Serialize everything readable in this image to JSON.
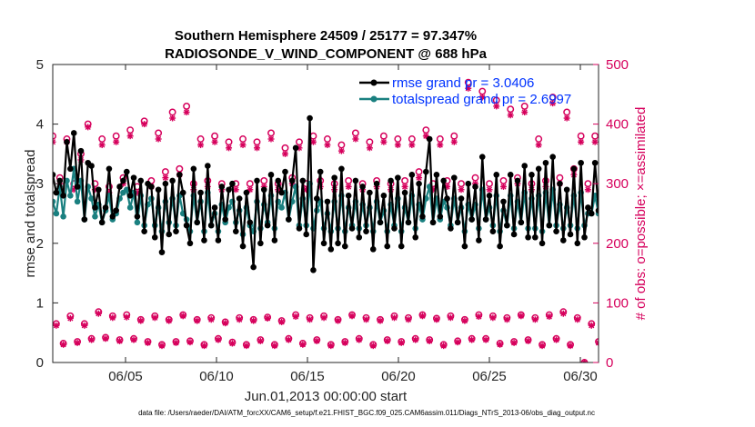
{
  "chart_data": {
    "type": "line",
    "title": "Southern Hemisphere 24509 / 25177 = 97.347%",
    "subtitle": "RADIOSONDE_V_WIND_COMPONENT @ 688 hPa",
    "xlabel": "Jun.01,2013 00:00:00 start",
    "ylabel": "rmse and totalspread",
    "ylabel_right": "# of obs: o=possible; ×=assimilated",
    "footnote": "data file: /Users/raeder/DAI/ATM_forcXX/CAM6_setup/f.e21.FHIST_BGC.f09_025.CAM6assim.011/Diags_NTrS_2013-06/obs_diag_output.nc",
    "xlim": [
      1.0,
      31.0
    ],
    "ylim": [
      0,
      5
    ],
    "ylim_right": [
      0,
      500
    ],
    "x_ticks": [
      5,
      10,
      15,
      20,
      25,
      30
    ],
    "x_tick_labels": [
      "06/05",
      "06/10",
      "06/15",
      "06/20",
      "06/25",
      "06/30"
    ],
    "y_ticks": [
      0,
      1,
      2,
      3,
      4,
      5
    ],
    "y_tick_labels": [
      "0",
      "1",
      "2",
      "3",
      "4",
      "5"
    ],
    "y_ticks_right": [
      0,
      100,
      200,
      300,
      400,
      500
    ],
    "y_tick_labels_right": [
      "0",
      "100",
      "200",
      "300",
      "400",
      "500"
    ],
    "legend_position": "top-right",
    "grid": false,
    "series": [
      {
        "name": "rmse grand pr = 3.0406",
        "axis": "left",
        "color": "#000000",
        "marker": "filled-circle",
        "values": [
          3.15,
          2.85,
          3.05,
          2.8,
          3.7,
          3.25,
          3.85,
          2.95,
          3.55,
          2.4,
          3.35,
          3.3,
          2.6,
          2.9,
          2.35,
          2.6,
          3.25,
          2.45,
          2.55,
          2.95,
          3.05,
          3.2,
          2.8,
          3.1,
          2.45,
          3.05,
          2.2,
          3.0,
          2.95,
          2.1,
          2.9,
          1.85,
          3.0,
          2.15,
          3.05,
          2.2,
          3.15,
          2.85,
          2.3,
          2.0,
          3.25,
          2.35,
          2.85,
          2.05,
          3.3,
          2.3,
          2.6,
          2.05,
          2.95,
          2.4,
          2.9,
          3.0,
          2.2,
          2.75,
          1.95,
          2.85,
          2.35,
          1.6,
          3.05,
          2.0,
          2.9,
          2.3,
          3.15,
          2.05,
          3.05,
          2.85,
          3.2,
          2.4,
          3.05,
          3.6,
          2.25,
          3.05,
          2.15,
          4.1,
          1.55,
          2.75,
          3.2,
          2.0,
          2.7,
          1.9,
          3.1,
          2.0,
          3.25,
          1.95,
          2.8,
          2.25,
          3.05,
          2.1,
          2.95,
          2.2,
          2.85,
          1.9,
          3.0,
          2.35,
          2.8,
          1.95,
          3.05,
          2.25,
          3.1,
          1.95,
          2.85,
          2.35,
          3.15,
          2.1,
          3.0,
          2.45,
          3.2,
          3.75,
          2.35,
          3.15,
          2.45,
          3.05,
          2.75,
          2.25,
          3.1,
          2.35,
          2.75,
          1.95,
          3.0,
          2.4,
          2.95,
          2.05,
          3.45,
          2.4,
          2.8,
          2.2,
          3.15,
          1.95,
          2.7,
          2.3,
          3.15,
          2.15,
          3.05,
          2.35,
          3.3,
          2.1,
          3.15,
          2.1,
          3.25,
          2.0,
          3.35,
          2.3,
          3.45,
          2.2,
          3.0,
          2.05,
          2.9,
          2.15,
          3.25,
          2.0,
          3.35,
          2.1,
          2.6,
          2.5,
          3.35,
          2.55
        ],
        "y_estimate_note": ""
      },
      {
        "name": "totalspread grand pr = 2.6997",
        "axis": "left",
        "color": "#1a8080",
        "marker": "filled-circle",
        "values": [
          2.7,
          2.5,
          2.95,
          2.45,
          3.05,
          2.8,
          3.25,
          2.7,
          3.05,
          2.4,
          2.95,
          2.75,
          2.45,
          2.65,
          2.35,
          2.55,
          2.8,
          2.4,
          2.5,
          2.75,
          2.85,
          2.9,
          2.6,
          2.85,
          2.35,
          2.8,
          2.3,
          2.65,
          2.75,
          2.3,
          2.6,
          2.2,
          2.7,
          2.35,
          2.75,
          2.3,
          2.8,
          2.5,
          2.4,
          2.2,
          2.8,
          2.35,
          2.7,
          2.2,
          2.85,
          2.3,
          2.5,
          2.2,
          2.65,
          2.35,
          2.6,
          2.7,
          2.35,
          2.55,
          2.15,
          2.6,
          2.3,
          2.2,
          2.7,
          2.25,
          2.65,
          2.35,
          2.8,
          2.25,
          2.7,
          2.6,
          2.85,
          2.4,
          2.7,
          2.95,
          2.3,
          2.75,
          2.3,
          3.0,
          2.25,
          2.55,
          2.7,
          2.25,
          2.5,
          2.2,
          2.7,
          2.25,
          2.8,
          2.2,
          2.6,
          2.3,
          2.7,
          2.25,
          2.65,
          2.3,
          2.6,
          2.2,
          2.7,
          2.35,
          2.55,
          2.2,
          2.65,
          2.3,
          2.75,
          2.2,
          2.6,
          2.35,
          2.8,
          2.25,
          2.65,
          2.4,
          2.75,
          2.95,
          2.35,
          2.75,
          2.4,
          2.7,
          2.6,
          2.3,
          2.75,
          2.35,
          2.6,
          2.2,
          2.65,
          2.4,
          2.65,
          2.25,
          2.9,
          2.4,
          2.6,
          2.3,
          2.8,
          2.2,
          2.55,
          2.3,
          2.8,
          2.25,
          2.7,
          2.35,
          2.85,
          2.25,
          2.75,
          2.25,
          2.8,
          2.2,
          2.85,
          2.3,
          2.9,
          2.3,
          2.65,
          2.25,
          2.6,
          2.3,
          2.8,
          2.25,
          2.85,
          2.3,
          2.5,
          2.5,
          2.8,
          2.5
        ]
      },
      {
        "name": "possible",
        "axis": "right",
        "color": "#d6005c",
        "marker": "open-circle",
        "values": [
          380,
          65,
          310,
          32,
          375,
          78,
          300,
          35,
          350,
          65,
          400,
          40,
          300,
          85,
          375,
          42,
          295,
          78,
          380,
          38,
          310,
          80,
          390,
          40,
          295,
          72,
          405,
          35,
          305,
          78,
          385,
          30,
          320,
          72,
          420,
          35,
          325,
          80,
          430,
          36,
          300,
          72,
          375,
          30,
          305,
          75,
          380,
          40,
          300,
          68,
          370,
          34,
          300,
          75,
          375,
          30,
          300,
          72,
          370,
          38,
          305,
          76,
          385,
          30,
          300,
          70,
          360,
          40,
          310,
          80,
          370,
          32,
          300,
          75,
          380,
          38,
          305,
          78,
          375,
          30,
          300,
          72,
          365,
          35,
          305,
          80,
          385,
          40,
          300,
          75,
          370,
          30,
          305,
          72,
          380,
          38,
          300,
          78,
          375,
          35,
          305,
          75,
          375,
          40,
          320,
          80,
          390,
          38,
          300,
          74,
          375,
          30,
          305,
          78,
          380,
          36,
          300,
          72,
          470,
          40,
          310,
          80,
          455,
          40,
          300,
          78,
          440,
          32,
          305,
          75,
          425,
          35,
          310,
          80,
          430,
          38,
          300,
          75,
          375,
          30,
          305,
          80,
          445,
          40,
          310,
          85,
          420,
          30,
          325,
          75,
          380,
          0,
          300,
          65,
          380,
          35
        ]
      },
      {
        "name": "assimilated",
        "axis": "right",
        "color": "#d6005c",
        "marker": "asterisk",
        "values": [
          370,
          62,
          300,
          30,
          370,
          74,
          290,
          33,
          340,
          62,
          395,
          38,
          290,
          82,
          365,
          40,
          285,
          75,
          370,
          36,
          300,
          76,
          380,
          38,
          285,
          70,
          400,
          33,
          295,
          75,
          375,
          28,
          310,
          70,
          410,
          33,
          315,
          78,
          420,
          34,
          290,
          70,
          365,
          28,
          295,
          72,
          370,
          38,
          290,
          66,
          360,
          32,
          290,
          72,
          365,
          28,
          290,
          70,
          360,
          36,
          295,
          74,
          375,
          28,
          290,
          68,
          350,
          38,
          300,
          77,
          360,
          30,
          290,
          72,
          370,
          36,
          295,
          75,
          365,
          28,
          290,
          70,
          355,
          33,
          295,
          78,
          375,
          38,
          290,
          72,
          360,
          28,
          295,
          70,
          370,
          36,
          290,
          75,
          365,
          33,
          295,
          72,
          365,
          38,
          310,
          78,
          380,
          36,
          290,
          72,
          365,
          28,
          295,
          75,
          370,
          34,
          290,
          70,
          460,
          38,
          300,
          77,
          445,
          38,
          290,
          75,
          430,
          30,
          295,
          72,
          415,
          33,
          300,
          78,
          420,
          36,
          290,
          72,
          365,
          28,
          295,
          77,
          435,
          38,
          300,
          82,
          410,
          28,
          315,
          72,
          370,
          0,
          290,
          62,
          370,
          33
        ]
      }
    ]
  }
}
